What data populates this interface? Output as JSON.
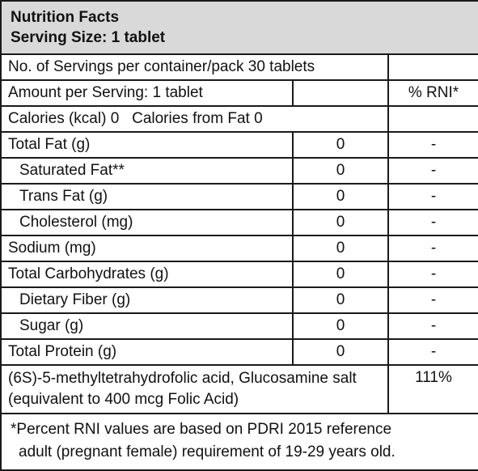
{
  "header": {
    "title": "Nutrition Facts",
    "serving_size": "Serving Size: 1 tablet"
  },
  "servings_row": {
    "label": "No. of Servings per container/pack 30 tablets",
    "value": ""
  },
  "amount_row": {
    "label": "Amount per Serving: 1 tablet",
    "value": "",
    "rni_header": "% RNI*"
  },
  "calories_row": {
    "label": "Calories (kcal) 0   Calories from Fat 0",
    "value": ""
  },
  "nutrients": [
    {
      "name": "Total Fat (g)",
      "amount": "0",
      "rni": "-",
      "indent": false
    },
    {
      "name": "Saturated Fat**",
      "amount": "0",
      "rni": "-",
      "indent": true
    },
    {
      "name": "Trans Fat (g)",
      "amount": "0",
      "rni": "-",
      "indent": true
    },
    {
      "name": "Cholesterol (mg)",
      "amount": "0",
      "rni": "-",
      "indent": true
    },
    {
      "name": "Sodium (mg)",
      "amount": "0",
      "rni": "-",
      "indent": false
    },
    {
      "name": "Total Carbohydrates (g)",
      "amount": "0",
      "rni": "-",
      "indent": false
    },
    {
      "name": "Dietary Fiber (g)",
      "amount": "0",
      "rni": "-",
      "indent": true
    },
    {
      "name": "Sugar (g)",
      "amount": "0",
      "rni": "-",
      "indent": true
    },
    {
      "name": "Total Protein (g)",
      "amount": "0",
      "rni": "-",
      "indent": false
    }
  ],
  "folic_row": {
    "label": "(6S)-5-methyltetrahydrofolic acid, Glucosamine salt (equivalent to 400 mcg Folic Acid)",
    "rni": "111%"
  },
  "footnote": {
    "line1": "*Percent RNI values are based on PDRI 2015 reference",
    "line2": "adult (pregnant female) requirement of 19-29 years old."
  },
  "colors": {
    "header_bg": "#d9d9d9",
    "border": "#1a1a1a",
    "text": "#111111"
  }
}
